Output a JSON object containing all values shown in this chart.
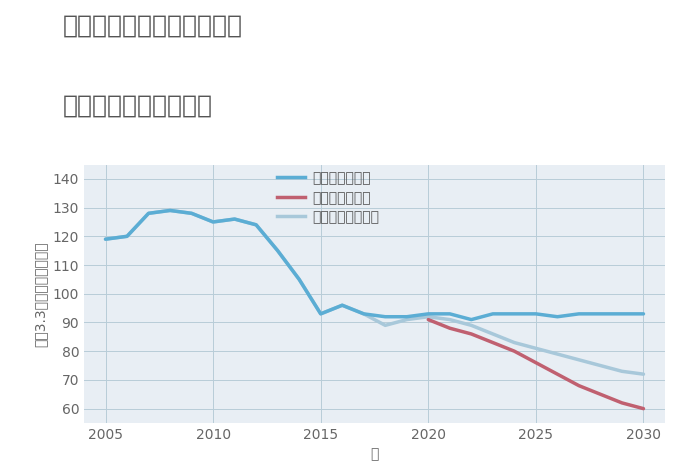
{
  "title_line1": "兵庫県豊岡市出石町寺町の",
  "title_line2": "中古戸建ての価格推移",
  "xlabel": "年",
  "ylabel": "坪（3.3㎡）単価（万円）",
  "fig_background": "#ffffff",
  "plot_background": "#e8eef4",
  "ylim": [
    55,
    145
  ],
  "xlim": [
    2004,
    2031
  ],
  "yticks": [
    60,
    70,
    80,
    90,
    100,
    110,
    120,
    130,
    140
  ],
  "xticks": [
    2005,
    2010,
    2015,
    2020,
    2025,
    2030
  ],
  "good_scenario": {
    "label": "グッドシナリオ",
    "color": "#5badd4",
    "linewidth": 2.5,
    "x": [
      2005,
      2006,
      2007,
      2008,
      2009,
      2010,
      2011,
      2012,
      2013,
      2014,
      2015,
      2016,
      2017,
      2018,
      2019,
      2020,
      2021,
      2022,
      2023,
      2024,
      2025,
      2026,
      2027,
      2028,
      2029,
      2030
    ],
    "y": [
      119,
      120,
      128,
      129,
      128,
      125,
      126,
      124,
      115,
      105,
      93,
      96,
      93,
      92,
      92,
      93,
      93,
      91,
      93,
      93,
      93,
      92,
      93,
      93,
      93,
      93
    ]
  },
  "bad_scenario": {
    "label": "バッドシナリオ",
    "color": "#c06070",
    "linewidth": 2.5,
    "x": [
      2020,
      2021,
      2022,
      2023,
      2024,
      2025,
      2026,
      2027,
      2028,
      2029,
      2030
    ],
    "y": [
      91,
      88,
      86,
      83,
      80,
      76,
      72,
      68,
      65,
      62,
      60
    ]
  },
  "normal_scenario": {
    "label": "ノーマルシナリオ",
    "color": "#a8c8da",
    "linewidth": 2.5,
    "x": [
      2005,
      2006,
      2007,
      2008,
      2009,
      2010,
      2011,
      2012,
      2013,
      2014,
      2015,
      2016,
      2017,
      2018,
      2019,
      2020,
      2021,
      2022,
      2023,
      2024,
      2025,
      2026,
      2027,
      2028,
      2029,
      2030
    ],
    "y": [
      119,
      120,
      128,
      129,
      128,
      125,
      126,
      124,
      115,
      105,
      93,
      96,
      93,
      89,
      91,
      92,
      91,
      89,
      86,
      83,
      81,
      79,
      77,
      75,
      73,
      72
    ]
  },
  "title_color": "#555555",
  "title_fontsize": 18,
  "legend_fontsize": 10,
  "tick_fontsize": 10,
  "axis_label_fontsize": 10,
  "grid_color": "#b8ccd8",
  "grid_alpha": 1.0
}
